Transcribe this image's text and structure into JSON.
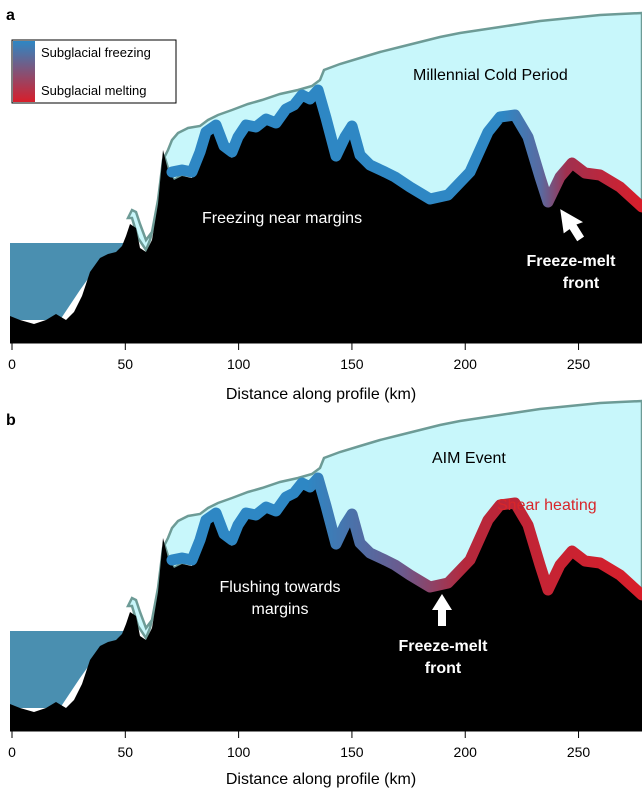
{
  "colors": {
    "ice": "#c8f7fb",
    "ice_edge": "#6d9b96",
    "bed": "#000000",
    "ocean": "#4a8fb0",
    "freezing": "#2e87c4",
    "melting": "#d81e2a",
    "white": "#ffffff"
  },
  "legend": {
    "freezing_label": "Subglacial freezing",
    "melting_label": "Subglacial melting"
  },
  "axis": {
    "xlabel": "Distance along profile (km)",
    "ticks": [
      "0",
      "50",
      "100",
      "150",
      "200",
      "250"
    ],
    "tick_values": [
      0,
      50,
      100,
      150,
      200,
      250
    ],
    "xlim": [
      0,
      278
    ]
  },
  "panels": [
    {
      "letter": "a",
      "title": "Millennial Cold Period",
      "inner_label": "Freezing near margins",
      "front_label_line1": "Freeze-melt",
      "front_label_line2": "front",
      "front_km": 238,
      "extra_label": ""
    },
    {
      "letter": "b",
      "title": "AIM Event",
      "inner_label_line1": "Flushing towards",
      "inner_label_line2": "margins",
      "front_label_line1": "Freeze-melt",
      "front_label_line2": "front",
      "front_km": 182,
      "extra_label": "Shear heating"
    }
  ]
}
